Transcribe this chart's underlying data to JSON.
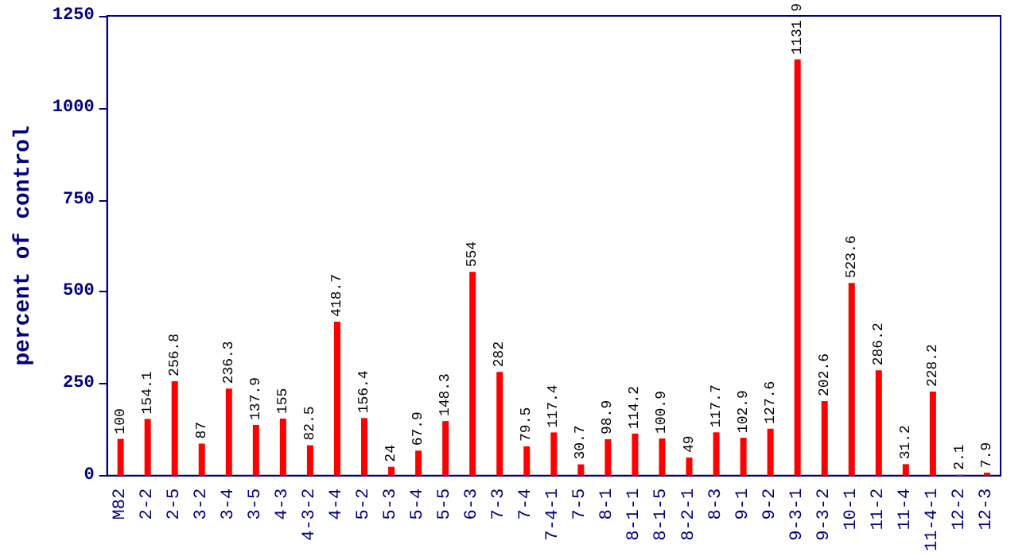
{
  "chart_data": {
    "type": "bar",
    "ylabel": "percent of control",
    "categories": [
      "M82",
      "2-2",
      "2-5",
      "3-2",
      "3-4",
      "3-5",
      "4-3",
      "4-3-2",
      "4-4",
      "5-2",
      "5-3",
      "5-4",
      "5-5",
      "6-3",
      "7-3",
      "7-4",
      "7-4-1",
      "7-5",
      "8-1",
      "8-1-1",
      "8-1-5",
      "8-2-1",
      "8-3",
      "9-1",
      "9-2",
      "9-3-1",
      "9-3-2",
      "10-1",
      "11-2",
      "11-4",
      "11-4-1",
      "12-2",
      "12-3"
    ],
    "values": [
      100,
      154.1,
      256.8,
      87,
      236.3,
      137.9,
      155,
      82.5,
      418.7,
      156.4,
      24,
      67.9,
      148.3,
      554,
      282,
      79.5,
      117.4,
      30.7,
      98.9,
      114.2,
      100.9,
      49,
      117.7,
      102.9,
      127.6,
      1131.9,
      202.6,
      523.6,
      286.2,
      31.2,
      228.2,
      2.1,
      7.9
    ],
    "color": "#ff0000",
    "ylim": [
      0,
      1250
    ],
    "yticks": [
      0,
      250,
      500,
      750,
      1000,
      1250
    ],
    "data_labels": true,
    "grid": false
  }
}
